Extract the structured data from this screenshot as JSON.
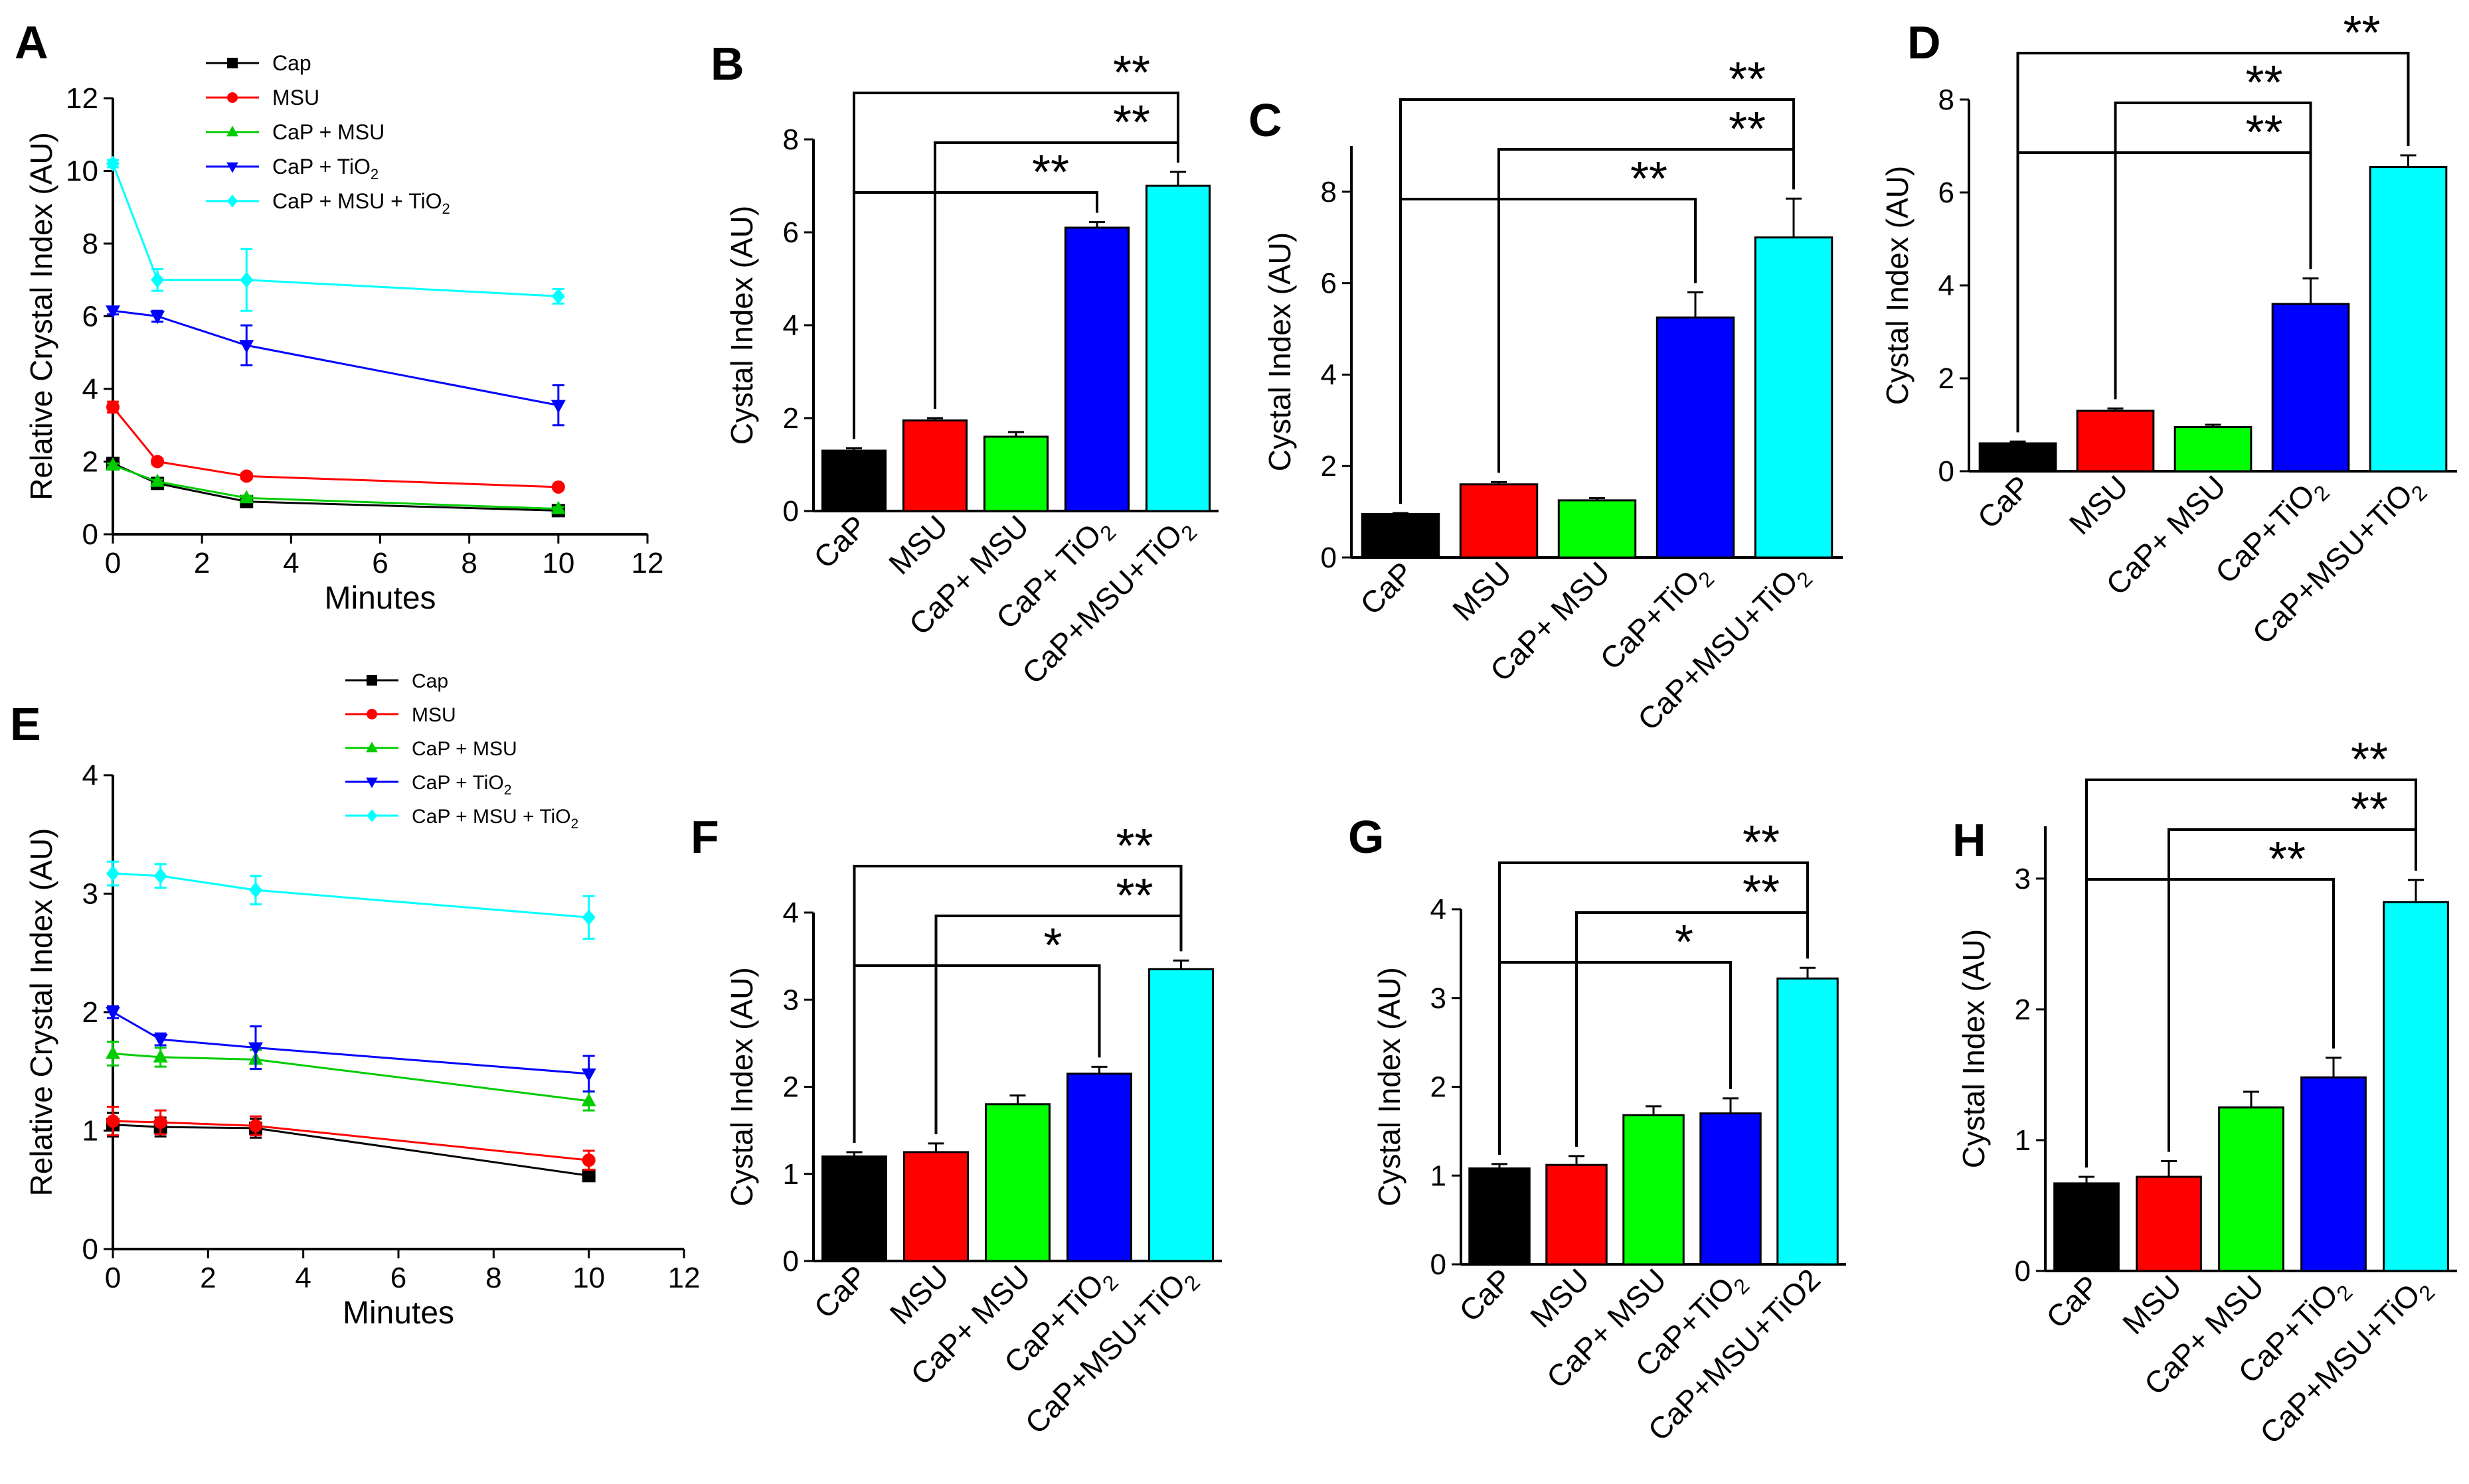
{
  "chart_data": [
    {
      "id": "A",
      "panel_label": "A",
      "type": "line",
      "xlabel": "Minutes",
      "ylabel": "Relative Crystal Index (AU)",
      "xlim": [
        0,
        12
      ],
      "ylim": [
        0,
        12
      ],
      "xticks": [
        "0",
        "2",
        "4",
        "6",
        "8",
        "10",
        "12"
      ],
      "yticks": [
        "0",
        "2",
        "4",
        "6",
        "8",
        "10",
        "12"
      ],
      "x": [
        0,
        1,
        3,
        10
      ],
      "series": [
        {
          "name": "Cap",
          "label_main": "Cap",
          "label_sub": "",
          "color": "#000000",
          "marker": "square",
          "values": [
            1.95,
            1.4,
            0.9,
            0.65
          ],
          "errors": [
            0.05,
            0.05,
            0.05,
            0.05
          ]
        },
        {
          "name": "MSU",
          "label_main": "MSU",
          "label_sub": "",
          "color": "#ff0000",
          "marker": "circle",
          "values": [
            3.5,
            2.0,
            1.6,
            1.3
          ],
          "errors": [
            0.15,
            0.08,
            0.08,
            0.05
          ]
        },
        {
          "name": "CaP + MSU",
          "label_main": "CaP + MSU",
          "label_sub": "",
          "color": "#00cc00",
          "marker": "triangle-up",
          "values": [
            1.9,
            1.45,
            1.0,
            0.7
          ],
          "errors": [
            0.05,
            0.05,
            0.05,
            0.05
          ]
        },
        {
          "name": "CaP + TiO2",
          "label_main": "CaP + TiO",
          "label_sub": "2",
          "color": "#0000ff",
          "marker": "triangle-down",
          "values": [
            6.15,
            6.0,
            5.2,
            3.55
          ],
          "errors": [
            0.1,
            0.15,
            0.55,
            0.55
          ]
        },
        {
          "name": "CaP + MSU + TiO2",
          "label_main": "CaP + MSU + TiO",
          "label_sub": "2",
          "color": "#00ffff",
          "marker": "diamond",
          "values": [
            10.2,
            7.0,
            7.0,
            6.55
          ],
          "errors": [
            0.1,
            0.3,
            0.85,
            0.2
          ]
        }
      ]
    },
    {
      "id": "B",
      "panel_label": "B",
      "type": "bar",
      "ylabel": "Cystal Index (AU)",
      "ylim": [
        0,
        8
      ],
      "yticks": [
        "0",
        "2",
        "4",
        "6",
        "8"
      ],
      "categories": [
        "CaP",
        "MSU",
        "CaP+ MSU",
        "CaP+ TiO2",
        "CaP+MSU+TiO2"
      ],
      "category_labels": [
        {
          "main": "CaP",
          "sub": "",
          "tail": ""
        },
        {
          "main": "MSU",
          "sub": "",
          "tail": ""
        },
        {
          "main": "CaP+ MSU",
          "sub": "",
          "tail": ""
        },
        {
          "main": "CaP+ TiO",
          "sub": "2",
          "tail": ""
        },
        {
          "main": "CaP+MSU+TiO",
          "sub": "2",
          "tail": ""
        }
      ],
      "values": [
        1.3,
        1.95,
        1.6,
        6.1,
        7.0
      ],
      "errors": [
        0.05,
        0.05,
        0.1,
        0.12,
        0.3
      ],
      "colors": [
        "#000000",
        "#ff0000",
        "#00ff00",
        "#0000ff",
        "#00ffff"
      ],
      "significance": [
        {
          "from": 0,
          "to": 4,
          "stars": "**"
        },
        {
          "from": 1,
          "to": 4,
          "stars": "**"
        },
        {
          "from": 0,
          "to": 3,
          "stars": "**"
        }
      ]
    },
    {
      "id": "C",
      "panel_label": "C",
      "type": "bar",
      "ylabel": "Cystal Index (AU)",
      "ylim": [
        0,
        9
      ],
      "yticks": [
        "0",
        "2",
        "4",
        "6",
        "8"
      ],
      "categories": [
        "CaP",
        "MSU",
        "CaP+ MSU",
        "CaP+TiO2",
        "CaP+MSU+TiO2"
      ],
      "category_labels": [
        {
          "main": "CaP",
          "sub": "",
          "tail": ""
        },
        {
          "main": "MSU",
          "sub": "",
          "tail": ""
        },
        {
          "main": "CaP+ MSU",
          "sub": "",
          "tail": ""
        },
        {
          "main": "CaP+TiO",
          "sub": "2",
          "tail": ""
        },
        {
          "main": "CaP+MSU+TiO",
          "sub": "2",
          "tail": ""
        }
      ],
      "values": [
        0.95,
        1.6,
        1.25,
        5.25,
        7.0
      ],
      "errors": [
        0.02,
        0.05,
        0.05,
        0.55,
        0.85
      ],
      "colors": [
        "#000000",
        "#ff0000",
        "#00ff00",
        "#0000ff",
        "#00ffff"
      ],
      "significance": [
        {
          "from": 0,
          "to": 4,
          "stars": "**"
        },
        {
          "from": 1,
          "to": 4,
          "stars": "**"
        },
        {
          "from": 0,
          "to": 3,
          "stars": "**"
        }
      ]
    },
    {
      "id": "D",
      "panel_label": "D",
      "type": "bar",
      "ylabel": "Cystal Index (AU)",
      "ylim": [
        0,
        8
      ],
      "yticks": [
        "0",
        "2",
        "4",
        "6",
        "8"
      ],
      "categories": [
        "CaP",
        "MSU",
        "CaP+ MSU",
        "CaP+TiO2",
        "CaP+MSU+TiO2"
      ],
      "category_labels": [
        {
          "main": "CaP",
          "sub": "",
          "tail": ""
        },
        {
          "main": "MSU",
          "sub": "",
          "tail": ""
        },
        {
          "main": "CaP+ MSU",
          "sub": "",
          "tail": ""
        },
        {
          "main": "CaP+TiO",
          "sub": "2",
          "tail": ""
        },
        {
          "main": "CaP+MSU+TiO",
          "sub": "2",
          "tail": ""
        }
      ],
      "values": [
        0.6,
        1.3,
        0.95,
        3.6,
        6.55
      ],
      "errors": [
        0.04,
        0.05,
        0.05,
        0.55,
        0.25
      ],
      "colors": [
        "#000000",
        "#ff0000",
        "#00ff00",
        "#0000ff",
        "#00ffff"
      ],
      "significance": [
        {
          "from": 0,
          "to": 4,
          "stars": "**"
        },
        {
          "from": 1,
          "to": 3,
          "stars": "**"
        },
        {
          "from": 0,
          "to": 3,
          "stars": "**"
        }
      ]
    },
    {
      "id": "E",
      "panel_label": "E",
      "type": "line",
      "xlabel": "Minutes",
      "ylabel": "Relative Crystal Index (AU)",
      "xlim": [
        0,
        12
      ],
      "ylim": [
        0,
        4
      ],
      "xticks": [
        "0",
        "2",
        "4",
        "6",
        "8",
        "10",
        "12"
      ],
      "yticks": [
        "0",
        "1",
        "2",
        "3",
        "4"
      ],
      "x": [
        0,
        1,
        3,
        10
      ],
      "series": [
        {
          "name": "Cap",
          "label_main": "Cap",
          "label_sub": "",
          "color": "#000000",
          "marker": "square",
          "values": [
            1.05,
            1.03,
            1.02,
            0.62
          ],
          "errors": [
            0.1,
            0.08,
            0.08,
            0.03
          ]
        },
        {
          "name": "MSU",
          "label_main": "MSU",
          "label_sub": "",
          "color": "#ff0000",
          "marker": "circle",
          "values": [
            1.08,
            1.07,
            1.04,
            0.75
          ],
          "errors": [
            0.12,
            0.1,
            0.08,
            0.08
          ]
        },
        {
          "name": "CaP + MSU",
          "label_main": "CaP + MSU",
          "label_sub": "",
          "color": "#00cc00",
          "marker": "triangle-up",
          "values": [
            1.65,
            1.62,
            1.6,
            1.25
          ],
          "errors": [
            0.1,
            0.08,
            0.08,
            0.08
          ]
        },
        {
          "name": "CaP + TiO2",
          "label_main": "CaP + TiO",
          "label_sub": "2",
          "color": "#0000ff",
          "marker": "triangle-down",
          "values": [
            2.0,
            1.77,
            1.7,
            1.48
          ],
          "errors": [
            0.05,
            0.05,
            0.18,
            0.15
          ]
        },
        {
          "name": "CaP + MSU + TiO2",
          "label_main": "CaP + MSU + TiO",
          "label_sub": "2",
          "color": "#00ffff",
          "marker": "diamond",
          "values": [
            3.17,
            3.15,
            3.03,
            2.8
          ],
          "errors": [
            0.1,
            0.1,
            0.12,
            0.18
          ]
        }
      ]
    },
    {
      "id": "F",
      "panel_label": "F",
      "type": "bar",
      "ylabel": "Cystal Index (AU)",
      "ylim": [
        0,
        4
      ],
      "yticks": [
        "0",
        "1",
        "2",
        "3",
        "4"
      ],
      "categories": [
        "CaP",
        "MSU",
        "CaP+ MSU",
        "CaP+TiO2",
        "CaP+MSU+TiO2"
      ],
      "category_labels": [
        {
          "main": "CaP",
          "sub": "",
          "tail": ""
        },
        {
          "main": "MSU",
          "sub": "",
          "tail": ""
        },
        {
          "main": "CaP+ MSU",
          "sub": "",
          "tail": ""
        },
        {
          "main": "CaP+TiO",
          "sub": "2",
          "tail": ""
        },
        {
          "main": "CaP+MSU+TiO",
          "sub": "2",
          "tail": ""
        }
      ],
      "values": [
        1.2,
        1.25,
        1.8,
        2.15,
        3.35
      ],
      "errors": [
        0.05,
        0.1,
        0.1,
        0.08,
        0.1
      ],
      "colors": [
        "#000000",
        "#ff0000",
        "#00ff00",
        "#0000ff",
        "#00ffff"
      ],
      "significance": [
        {
          "from": 0,
          "to": 4,
          "stars": "**"
        },
        {
          "from": 1,
          "to": 4,
          "stars": "**"
        },
        {
          "from": 0,
          "to": 3,
          "stars": "*"
        }
      ]
    },
    {
      "id": "G",
      "panel_label": "G",
      "type": "bar",
      "ylabel": "Cystal Index (AU)",
      "ylim": [
        0,
        4
      ],
      "yticks": [
        "0",
        "1",
        "2",
        "3",
        "4"
      ],
      "categories": [
        "CaP",
        "MSU",
        "CaP+ MSU",
        "CaP+TiO2",
        "CaP+MSU+TiO2"
      ],
      "category_labels": [
        {
          "main": "CaP",
          "sub": "",
          "tail": ""
        },
        {
          "main": "MSU",
          "sub": "",
          "tail": ""
        },
        {
          "main": "CaP+ MSU",
          "sub": "",
          "tail": ""
        },
        {
          "main": "CaP+TiO",
          "sub": "2",
          "tail": ""
        },
        {
          "main": "CaP+MSU+TiO2",
          "sub": "",
          "tail": ""
        }
      ],
      "values": [
        1.08,
        1.12,
        1.68,
        1.7,
        3.22
      ],
      "errors": [
        0.05,
        0.1,
        0.1,
        0.17,
        0.12
      ],
      "colors": [
        "#000000",
        "#ff0000",
        "#00ff00",
        "#0000ff",
        "#00ffff"
      ],
      "significance": [
        {
          "from": 0,
          "to": 4,
          "stars": "**"
        },
        {
          "from": 1,
          "to": 4,
          "stars": "**"
        },
        {
          "from": 0,
          "to": 3,
          "stars": "*"
        }
      ]
    },
    {
      "id": "H",
      "panel_label": "H",
      "type": "bar",
      "ylabel": "Cystal Index (AU)",
      "ylim": [
        0,
        3.4
      ],
      "yticks": [
        "0",
        "1",
        "2",
        "3"
      ],
      "categories": [
        "CaP",
        "MSU",
        "CaP+ MSU",
        "CaP+TiO2",
        "CaP+MSU+TiO2"
      ],
      "category_labels": [
        {
          "main": "CaP",
          "sub": "",
          "tail": ""
        },
        {
          "main": "MSU",
          "sub": "",
          "tail": ""
        },
        {
          "main": "CaP+ MSU",
          "sub": "",
          "tail": ""
        },
        {
          "main": "CaP+TiO",
          "sub": "2",
          "tail": ""
        },
        {
          "main": "CaP+MSU+TiO",
          "sub": "2",
          "tail": ""
        }
      ],
      "values": [
        0.67,
        0.72,
        1.25,
        1.48,
        2.82
      ],
      "errors": [
        0.05,
        0.12,
        0.12,
        0.15,
        0.17
      ],
      "colors": [
        "#000000",
        "#ff0000",
        "#00ff00",
        "#0000ff",
        "#00ffff"
      ],
      "significance": [
        {
          "from": 0,
          "to": 4,
          "stars": "**"
        },
        {
          "from": 1,
          "to": 4,
          "stars": "**"
        },
        {
          "from": 0,
          "to": 3,
          "stars": "**"
        }
      ]
    }
  ]
}
